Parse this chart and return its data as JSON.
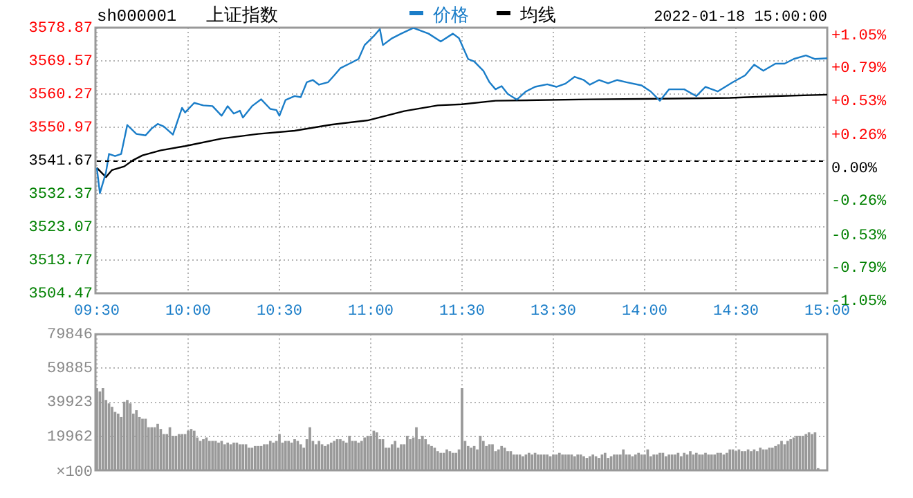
{
  "chart_data": [
    {
      "type": "line",
      "title": "上证指数",
      "subtitle": "sh000001",
      "annotations": [
        "2022-01-18 15:00:00"
      ],
      "legend": "top",
      "grid": true,
      "marker": "none",
      "categories": [
        "09:30",
        null,
        null,
        null,
        null,
        null,
        null,
        null,
        null,
        null,
        null,
        null,
        null,
        null,
        null,
        null,
        null,
        null,
        null,
        null,
        null,
        null,
        null,
        null,
        null,
        null,
        null,
        null,
        null,
        null,
        "10:00",
        null,
        null,
        null,
        null,
        null,
        null,
        null,
        null,
        null,
        null,
        null,
        null,
        null,
        null,
        null,
        null,
        null,
        null,
        null,
        null,
        null,
        null,
        null,
        null,
        null,
        null,
        null,
        null,
        null,
        "10:30",
        null,
        null,
        null,
        null,
        null,
        null,
        null,
        null,
        null,
        null,
        null,
        null,
        null,
        null,
        null,
        null,
        null,
        null,
        null,
        null,
        null,
        null,
        null,
        null,
        null,
        null,
        null,
        null,
        null,
        "11:00",
        null,
        null,
        null,
        null,
        null,
        null,
        null,
        null,
        null,
        null,
        null,
        null,
        null,
        null,
        null,
        null,
        null,
        null,
        null,
        null,
        null,
        null,
        null,
        null,
        null,
        null,
        null,
        null,
        null,
        "11:30",
        null,
        null,
        null,
        null,
        null,
        null,
        null,
        null,
        null,
        null,
        null,
        null,
        null,
        null,
        null,
        null,
        null,
        null,
        null,
        null,
        null,
        null,
        null,
        null,
        null,
        null,
        null,
        null,
        null,
        "13:30",
        null,
        null,
        null,
        null,
        null,
        null,
        null,
        null,
        null,
        null,
        null,
        null,
        null,
        null,
        null,
        null,
        null,
        null,
        null,
        null,
        null,
        null,
        null,
        null,
        null,
        null,
        null,
        null,
        null,
        "14:00",
        null,
        null,
        null,
        null,
        null,
        null,
        null,
        null,
        null,
        null,
        null,
        null,
        null,
        null,
        null,
        null,
        null,
        null,
        null,
        null,
        null,
        null,
        null,
        null,
        null,
        null,
        null,
        null,
        null,
        "14:30",
        null,
        null,
        null,
        null,
        null,
        null,
        null,
        null,
        null,
        null,
        null,
        null,
        null,
        null,
        null,
        null,
        null,
        null,
        null,
        null,
        null,
        null,
        null,
        null,
        null,
        null,
        null,
        null,
        null,
        "15:00"
      ],
      "ylim": [
        3504.47,
        3578.87
      ],
      "yticks": [
        3504.47,
        3513.77,
        3523.07,
        3532.37,
        3541.67,
        3550.97,
        3560.27,
        3569.57,
        3578.87
      ],
      "y2lim": [
        -1.05,
        1.05
      ],
      "y2ticks": [
        {
          "value": -1.05,
          "label": "-1.05%"
        },
        {
          "value": -0.79,
          "label": "-0.79%"
        },
        {
          "value": -0.53,
          "label": "-0.53%"
        },
        {
          "value": -0.26,
          "label": "-0.26%"
        },
        {
          "value": 0,
          "label": "0.00%"
        },
        {
          "value": 0.26,
          "label": "+0.26%"
        },
        {
          "value": 0.53,
          "label": "+0.53%"
        },
        {
          "value": 0.79,
          "label": "+0.79%"
        },
        {
          "value": 1.05,
          "label": "+1.05%"
        }
      ],
      "ref_lines": [
        {
          "axis": "y",
          "value": 3541.67,
          "color": "#000000",
          "line_style": "dashed"
        }
      ],
      "series": [
        {
          "name": "价格",
          "color": "#1a7dc8",
          "values": [
            3539.6,
            3532.5,
            null,
            3538.3,
            3543.5,
            null,
            3542.9,
            null,
            3543.5,
            null,
            3551.6,
            null,
            null,
            3549.1,
            null,
            null,
            3548.7,
            null,
            3550.6,
            null,
            3551.9,
            null,
            3551.2,
            null,
            null,
            3548.9,
            null,
            null,
            3556.4,
            3555.1,
            null,
            null,
            3557.8,
            null,
            null,
            3557.1,
            null,
            null,
            3556.9,
            null,
            null,
            3554.2,
            null,
            3556.9,
            null,
            3554.8,
            null,
            3555.6,
            3553.7,
            null,
            null,
            3556.9,
            null,
            null,
            3558.8,
            null,
            null,
            3556.1,
            null,
            3555.8,
            3554.2,
            null,
            3558.6,
            null,
            null,
            3559.7,
            null,
            3559.4,
            null,
            3563.6,
            null,
            3564.2,
            null,
            3562.9,
            null,
            null,
            3563.6,
            null,
            3565.5,
            null,
            3567.5,
            null,
            null,
            3568.8,
            null,
            null,
            3570.1,
            null,
            3574.0,
            null,
            null,
            3576.5,
            null,
            3578.5,
            3574.0,
            null,
            null,
            3575.9,
            null,
            null,
            3577.2,
            null,
            null,
            null,
            3578.8,
            null,
            null,
            null,
            null,
            3577.2,
            null,
            null,
            null,
            3575.0,
            null,
            null,
            null,
            3577.2,
            null,
            3575.9,
            null,
            null,
            3570.1,
            null,
            3569.4,
            null,
            null,
            3566.8,
            null,
            3563.6,
            null,
            3561.6,
            null,
            3562.5,
            null,
            3560.3,
            null,
            null,
            3558.7,
            null,
            null,
            3561.0,
            null,
            null,
            3562.3,
            null,
            null,
            null,
            3563.0,
            null,
            null,
            3562.3,
            null,
            null,
            3563.2,
            null,
            null,
            3565.1,
            null,
            null,
            3564.2,
            null,
            3562.9,
            null,
            null,
            3564.2,
            null,
            null,
            3563.3,
            null,
            null,
            3564.2,
            null,
            null,
            3563.6,
            null,
            null,
            null,
            null,
            3562.7,
            null,
            null,
            3561.0,
            null,
            null,
            3558.4,
            null,
            null,
            3561.6,
            null,
            null,
            null,
            null,
            3561.6,
            null,
            null,
            null,
            3559.7,
            null,
            null,
            3562.3,
            null,
            null,
            null,
            3561.0,
            null,
            null,
            null,
            null,
            3563.6,
            null,
            null,
            null,
            3565.5,
            null,
            null,
            3568.5,
            null,
            null,
            3566.8,
            null,
            null,
            null,
            3568.8,
            null,
            null,
            3568.8,
            null,
            null,
            3570.1,
            null,
            null,
            null,
            3571.1,
            null,
            null,
            3570.1,
            null,
            null,
            null,
            3570.3
          ]
        },
        {
          "name": "均线",
          "color": "#000000",
          "values": [
            3539.6,
            null,
            null,
            3537.0,
            null,
            3539.0,
            null,
            null,
            null,
            3540.0,
            null,
            null,
            3541.8,
            null,
            null,
            3543.1,
            null,
            null,
            null,
            null,
            null,
            3544.5,
            null,
            null,
            null,
            null,
            null,
            null,
            null,
            3545.7,
            null,
            null,
            null,
            null,
            null,
            null,
            null,
            null,
            null,
            null,
            null,
            3547.8,
            null,
            null,
            null,
            null,
            null,
            null,
            null,
            null,
            null,
            null,
            null,
            3549.1,
            null,
            null,
            null,
            null,
            null,
            null,
            null,
            null,
            null,
            null,
            null,
            3550.0,
            null,
            null,
            null,
            null,
            null,
            null,
            null,
            null,
            null,
            null,
            null,
            3551.7,
            null,
            null,
            null,
            null,
            null,
            null,
            null,
            null,
            null,
            null,
            null,
            3552.9,
            null,
            null,
            null,
            null,
            null,
            null,
            null,
            null,
            null,
            null,
            null,
            3555.5,
            null,
            null,
            null,
            null,
            null,
            null,
            null,
            null,
            null,
            null,
            3557.1,
            null,
            null,
            null,
            null,
            null,
            null,
            null,
            3557.4,
            null,
            null,
            null,
            null,
            null,
            null,
            null,
            null,
            null,
            null,
            3558.4,
            null,
            null,
            null,
            null,
            null,
            null,
            null,
            null,
            null,
            null,
            null,
            null,
            null,
            null,
            null,
            null,
            null,
            null,
            null,
            null,
            null,
            null,
            null,
            null,
            null,
            null,
            null,
            null,
            null,
            null,
            3558.8,
            null,
            null,
            null,
            null,
            null,
            null,
            null,
            null,
            null,
            null,
            null,
            null,
            null,
            null,
            null,
            null,
            3558.9,
            null,
            null,
            null,
            null,
            null,
            null,
            null,
            null,
            null,
            null,
            null,
            null,
            null,
            null,
            null,
            null,
            null,
            null,
            null,
            null,
            null,
            null,
            null,
            null,
            null,
            null,
            null,
            null,
            3559.2,
            null,
            null,
            null,
            null,
            null,
            null,
            null,
            null,
            null,
            null,
            null,
            null,
            null,
            null,
            3559.7,
            null,
            null,
            null,
            null,
            null,
            null,
            null,
            null,
            null,
            null,
            null,
            null,
            null,
            null,
            null,
            null,
            3560.1
          ]
        }
      ]
    },
    {
      "type": "bar",
      "grid": true,
      "tick_labels": "y",
      "ylabel": "×100",
      "categories": [
        null,
        null,
        null,
        null,
        null,
        null,
        null,
        null,
        null,
        null,
        null,
        null,
        null,
        null,
        null,
        null,
        null,
        null,
        null,
        null,
        null,
        null,
        null,
        null,
        null,
        null,
        null,
        null,
        null,
        null,
        null,
        null,
        null,
        null,
        null,
        null,
        null,
        null,
        null,
        null,
        null,
        null,
        null,
        null,
        null,
        null,
        null,
        null,
        null,
        null,
        null,
        null,
        null,
        null,
        null,
        null,
        null,
        null,
        null,
        null,
        null,
        null,
        null,
        null,
        null,
        null,
        null,
        null,
        null,
        null,
        null,
        null,
        null,
        null,
        null,
        null,
        null,
        null,
        null,
        null,
        null,
        null,
        null,
        null,
        null,
        null,
        null,
        null,
        null,
        null,
        null,
        null,
        null,
        null,
        null,
        null,
        null,
        null,
        null,
        null,
        null,
        null,
        null,
        null,
        null,
        null,
        null,
        null,
        null,
        null,
        null,
        null,
        null,
        null,
        null,
        null,
        null,
        null,
        null,
        null,
        null,
        null,
        null,
        null,
        null,
        null,
        null,
        null,
        null,
        null,
        null,
        null,
        null,
        null,
        null,
        null,
        null,
        null,
        null,
        null,
        null,
        null,
        null,
        null,
        null,
        null,
        null,
        null,
        null,
        null,
        null,
        null,
        null,
        null,
        null,
        null,
        null,
        null,
        null,
        null,
        null,
        null,
        null,
        null,
        null,
        null,
        null,
        null,
        null,
        null,
        null,
        null,
        null,
        null,
        null,
        null,
        null,
        null,
        null,
        null,
        null,
        null,
        null,
        null,
        null,
        null,
        null,
        null,
        null,
        null,
        null,
        null,
        null,
        null,
        null,
        null,
        null,
        null,
        null,
        null,
        null,
        null,
        null,
        null,
        null,
        null,
        null,
        null,
        null,
        null,
        null,
        null,
        null,
        null,
        null,
        null,
        null,
        null,
        null,
        null,
        null,
        null,
        null,
        null,
        null,
        null,
        null,
        null,
        null,
        null,
        null,
        null,
        null,
        null,
        null,
        null,
        null,
        null,
        null,
        null,
        null
      ],
      "ylim": [
        0,
        79846
      ],
      "yticks": [
        19962,
        39923,
        59885,
        79846
      ],
      "series": [
        {
          "color": "#999999",
          "values": [
            48000,
            46000,
            48000,
            41000,
            39000,
            37000,
            34000,
            33000,
            31000,
            40000,
            41000,
            39000,
            33000,
            35000,
            31000,
            30000,
            30000,
            25000,
            25000,
            25000,
            27000,
            24000,
            21000,
            21000,
            25000,
            20000,
            20000,
            21000,
            21000,
            21000,
            23000,
            24000,
            23000,
            19000,
            17000,
            18000,
            19000,
            17000,
            17000,
            17000,
            16000,
            17000,
            15000,
            16000,
            15000,
            16000,
            16000,
            15000,
            15000,
            15000,
            13000,
            13000,
            14000,
            14000,
            14000,
            15000,
            15000,
            17000,
            16000,
            17000,
            21000,
            16000,
            17000,
            17000,
            16000,
            18000,
            17000,
            15000,
            13000,
            18000,
            25000,
            17000,
            15000,
            17000,
            15000,
            14000,
            15000,
            16000,
            17000,
            18000,
            18000,
            17000,
            16000,
            20000,
            17000,
            17000,
            16000,
            17000,
            19000,
            20000,
            20000,
            23000,
            22000,
            18000,
            18000,
            13000,
            13000,
            15000,
            17000,
            13000,
            15000,
            15000,
            20000,
            18000,
            19000,
            25000,
            18000,
            20000,
            18000,
            15000,
            14000,
            13000,
            11000,
            10000,
            10000,
            12000,
            11000,
            10000,
            10000,
            12000,
            48000,
            17000,
            14000,
            13000,
            14000,
            12000,
            20000,
            17000,
            14000,
            15000,
            15000,
            11000,
            12000,
            14000,
            13000,
            11000,
            11000,
            9000,
            9000,
            9000,
            8000,
            9000,
            10000,
            9000,
            10000,
            9000,
            9000,
            9000,
            9000,
            8000,
            9000,
            9000,
            10000,
            9000,
            9000,
            9000,
            9000,
            8000,
            9000,
            9000,
            8000,
            7000,
            8000,
            9000,
            8000,
            7000,
            9000,
            10000,
            7000,
            8000,
            9000,
            9000,
            9000,
            12000,
            9000,
            9000,
            8000,
            9000,
            10000,
            9000,
            9000,
            12000,
            8000,
            9000,
            9000,
            10000,
            10000,
            8000,
            9000,
            9000,
            9000,
            10000,
            8000,
            10000,
            9000,
            11000,
            9000,
            10000,
            9000,
            9000,
            10000,
            9000,
            9000,
            9000,
            10000,
            10000,
            9000,
            10000,
            12000,
            12000,
            11000,
            12000,
            11000,
            11000,
            12000,
            11000,
            12000,
            11000,
            13000,
            12000,
            12000,
            13000,
            13000,
            14000,
            15000,
            17000,
            15000,
            17000,
            18000,
            19000,
            20000,
            20000,
            20000,
            21000,
            22000,
            21000,
            22000,
            1000,
            null,
            null,
            null
          ]
        }
      ]
    }
  ]
}
